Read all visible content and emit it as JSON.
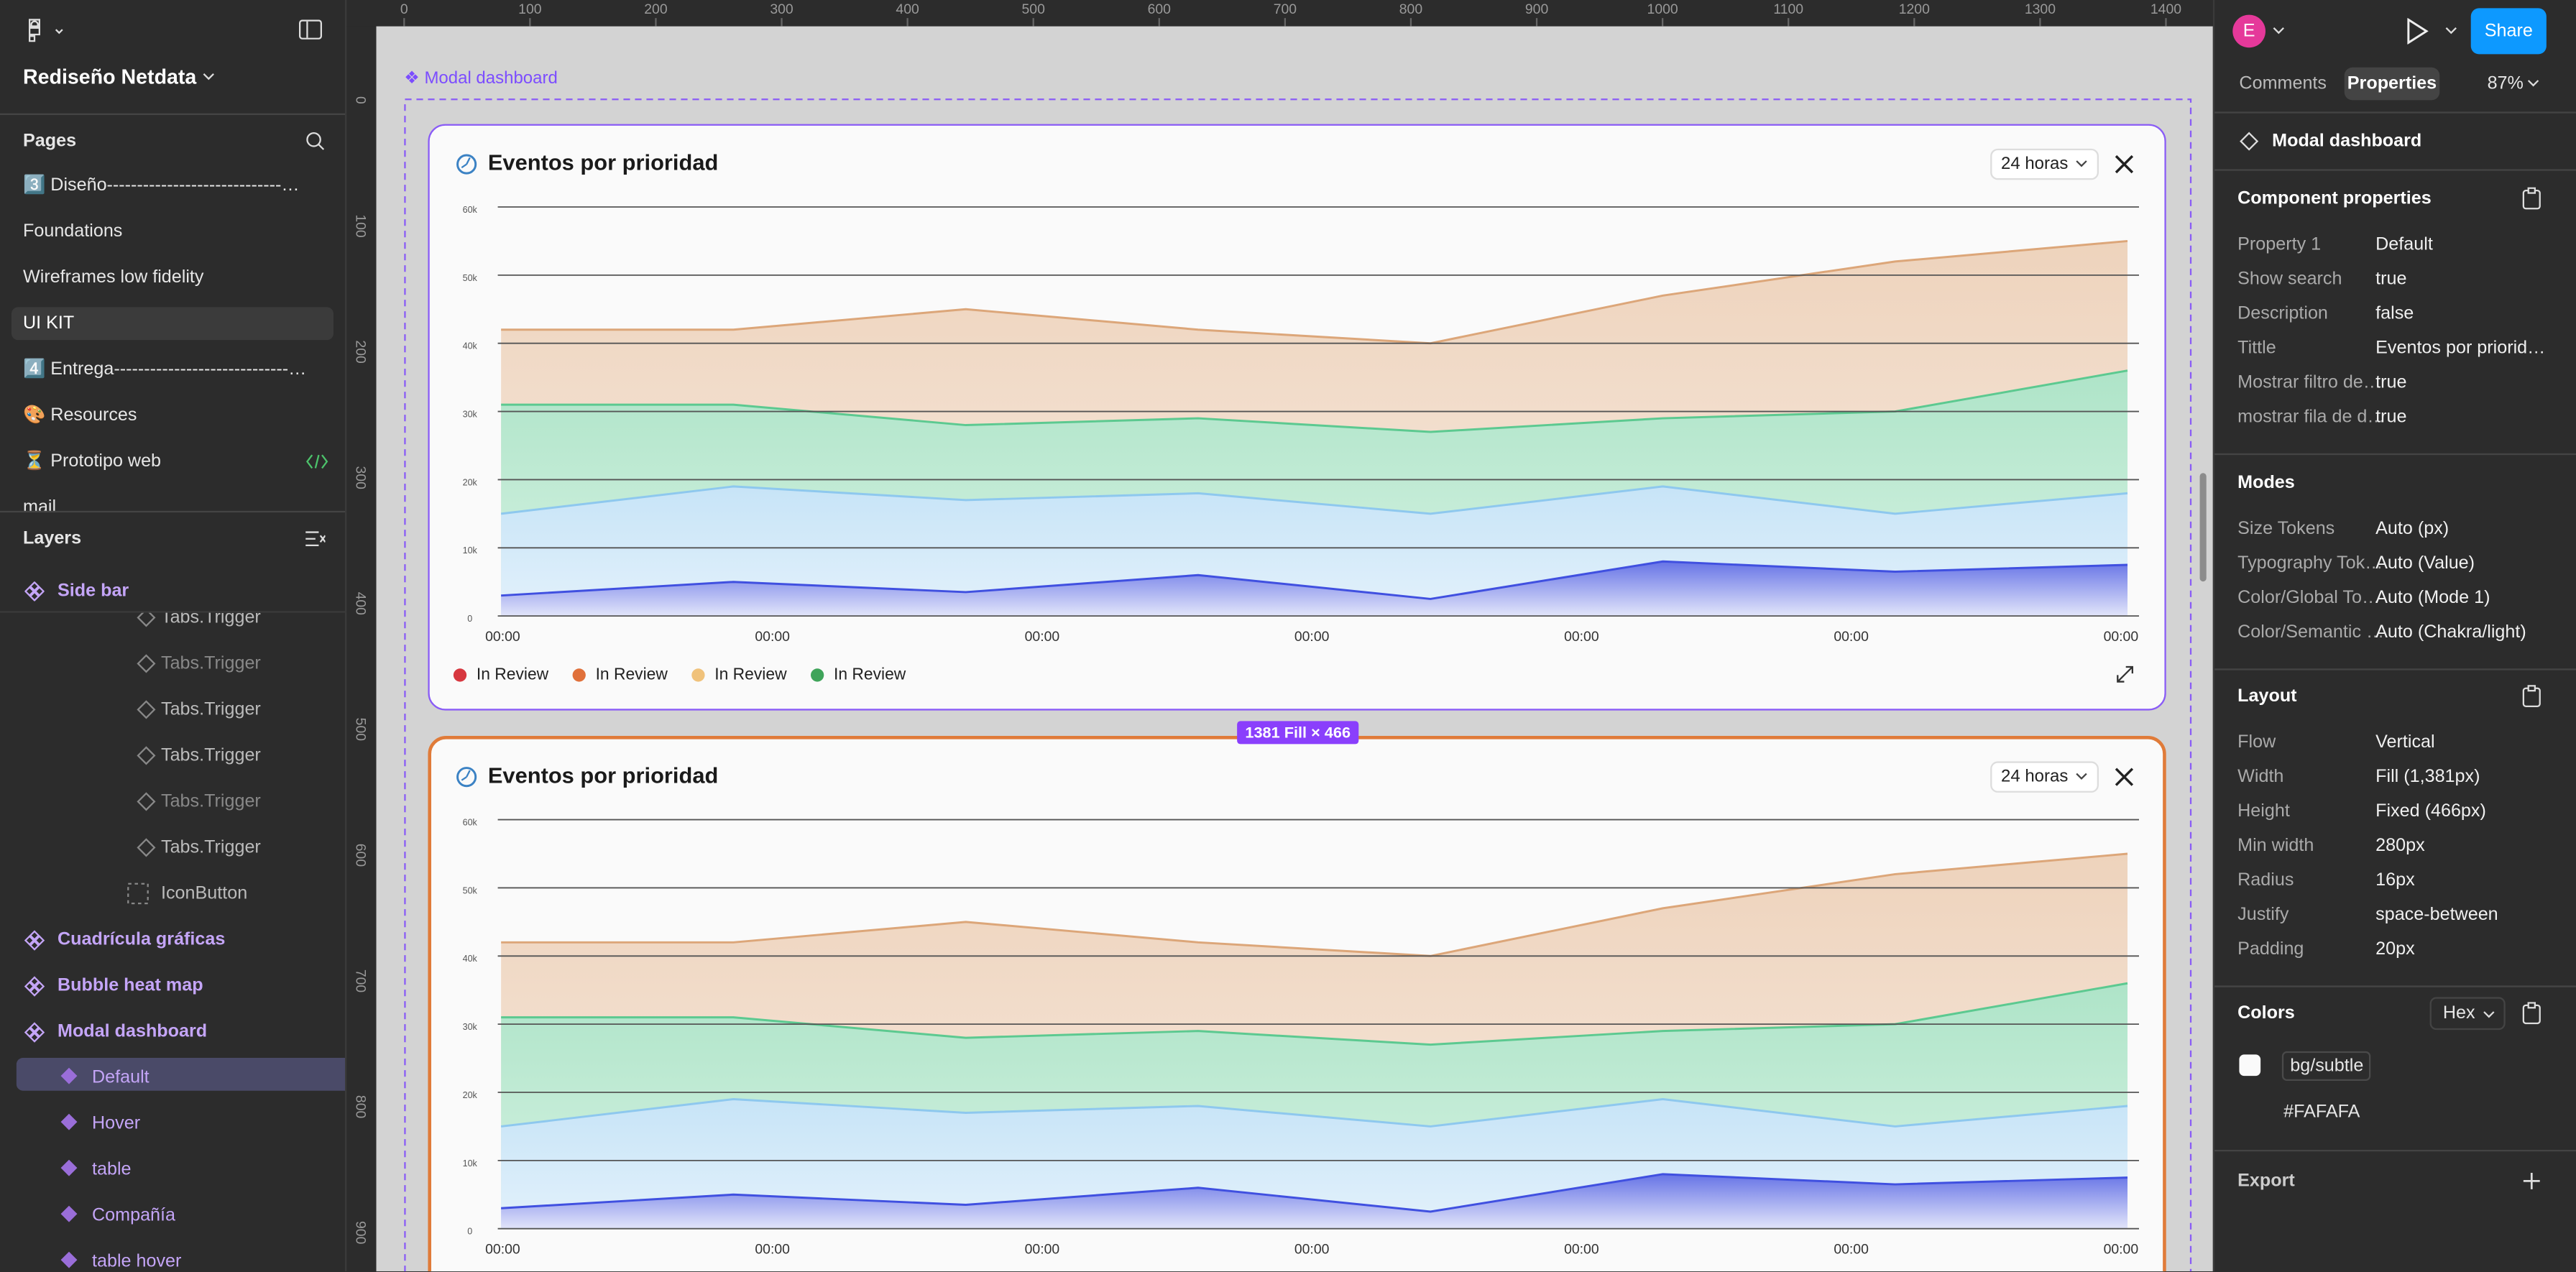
{
  "toolbar": {
    "file_name": "Rediseño Netdata"
  },
  "pages": {
    "title": "Pages",
    "items": [
      "3️⃣ Diseño-----------------------------…",
      "Foundations",
      "Wireframes low fidelity",
      "UI KIT",
      "4️⃣ Entrega-----------------------------…",
      "🎨 Resources",
      "⏳ Prototipo web",
      "mail"
    ]
  },
  "layers": {
    "title": "Layers",
    "items": [
      "Side bar",
      "Tabs.Trigger",
      "Tabs.Trigger",
      "Tabs.Trigger",
      "Tabs.Trigger",
      "Tabs.Trigger",
      "Tabs.Trigger",
      "IconButton",
      "Cuadrícula gráficas",
      "Bubble heat map",
      "Modal dashboard",
      "Default",
      "Hover",
      "table",
      "Compañía",
      "table hover"
    ]
  },
  "rulers": {
    "top": [
      0,
      100,
      200,
      300,
      400,
      500,
      600,
      700,
      800,
      900,
      1000,
      1100,
      1200,
      1300,
      1400
    ],
    "left": [
      0,
      100,
      200,
      300,
      400,
      500,
      600,
      700,
      800,
      900
    ]
  },
  "canvas": {
    "frame_label": "❖ Modal dashboard",
    "size_badge": "1381 Fill × 466",
    "cards": [
      {
        "title": "Eventos por prioridad",
        "range": "24 horas",
        "chart": {
          "type": "area",
          "ylim": [
            0,
            60000
          ],
          "yticks": [
            0,
            {
              "value": 10000,
              "label": "10k"
            },
            {
              "value": 20000,
              "label": "20k"
            },
            {
              "value": 30000,
              "label": "30k"
            },
            {
              "value": 40000,
              "label": "40k"
            },
            {
              "value": 50000,
              "label": "50k"
            },
            {
              "value": 60000,
              "label": "60k"
            }
          ],
          "x_labels": [
            "00:00",
            "00:00",
            "00:00",
            "00:00",
            "00:00",
            "00:00",
            "00:00"
          ],
          "series": [
            {
              "color": "#dca679",
              "values": [
                42000,
                42000,
                45000,
                42000,
                40000,
                47000,
                52000,
                55000
              ]
            },
            {
              "color": "#5cc990",
              "values": [
                31000,
                31000,
                28000,
                29000,
                27000,
                29000,
                30000,
                36000
              ]
            },
            {
              "color": "#8ec8ee",
              "values": [
                15000,
                19000,
                17000,
                18000,
                15000,
                19000,
                15000,
                18000
              ]
            },
            {
              "color": "#4050e0",
              "values": [
                3000,
                5000,
                3500,
                6000,
                2500,
                8000,
                6500,
                7500
              ]
            }
          ],
          "legend": [
            {
              "name": "In Review",
              "color": "#d7373f"
            },
            {
              "name": "In Review",
              "color": "#e0703a"
            },
            {
              "name": "In Review",
              "color": "#f0c27b"
            },
            {
              "name": "In Review",
              "color": "#3fa45a"
            }
          ]
        }
      },
      {
        "title": "Eventos por prioridad",
        "range": "24 horas",
        "chart": {
          "type": "area",
          "ylim": [
            0,
            60000
          ],
          "yticks": [
            0,
            {
              "value": 10000,
              "label": "10k"
            },
            {
              "value": 20000,
              "label": "20k"
            },
            {
              "value": 30000,
              "label": "30k"
            },
            {
              "value": 40000,
              "label": "40k"
            },
            {
              "value": 50000,
              "label": "50k"
            },
            {
              "value": 60000,
              "label": "60k"
            }
          ],
          "x_labels": [
            "00:00",
            "00:00",
            "00:00",
            "00:00",
            "00:00",
            "00:00",
            "00:00"
          ],
          "series": [
            {
              "color": "#dca679",
              "values": [
                42000,
                42000,
                45000,
                42000,
                40000,
                47000,
                52000,
                55000
              ]
            },
            {
              "color": "#5cc990",
              "values": [
                31000,
                31000,
                28000,
                29000,
                27000,
                29000,
                30000,
                36000
              ]
            },
            {
              "color": "#8ec8ee",
              "values": [
                15000,
                19000,
                17000,
                18000,
                15000,
                19000,
                15000,
                18000
              ]
            },
            {
              "color": "#4050e0",
              "values": [
                3000,
                5000,
                3500,
                6000,
                2500,
                8000,
                6500,
                7500
              ]
            }
          ]
        }
      }
    ]
  },
  "properties": {
    "avatar": "E",
    "share": "Share",
    "tabs": [
      "Comments",
      "Properties"
    ],
    "zoom": "87%",
    "selection": "Modal dashboard",
    "sections": [
      {
        "title": "Component properties",
        "rows": [
          [
            "Property 1",
            "Default"
          ],
          [
            "Show search",
            "true"
          ],
          [
            "Description",
            "false"
          ],
          [
            "Tittle",
            "Eventos por priorid…"
          ],
          [
            "Mostrar filtro de…",
            "true"
          ],
          [
            "mostrar fila de d…",
            "true"
          ]
        ]
      },
      {
        "title": "Modes",
        "rows": [
          [
            "Size Tokens",
            "Auto (px)"
          ],
          [
            "Typography Tok…",
            "Auto (Value)"
          ],
          [
            "Color/Global To…",
            "Auto (Mode 1)"
          ],
          [
            "Color/Semantic …",
            "Auto (Chakra/light)"
          ]
        ]
      },
      {
        "title": "Layout",
        "rows": [
          [
            "Flow",
            "Vertical"
          ],
          [
            "Width",
            "Fill (1,381px)"
          ],
          [
            "Height",
            "Fixed (466px)"
          ],
          [
            "Min width",
            "280px"
          ],
          [
            "Radius",
            "16px"
          ],
          [
            "Justify",
            "space-between"
          ],
          [
            "Padding",
            "20px"
          ]
        ]
      }
    ],
    "colors": {
      "title": "Colors",
      "format": "Hex",
      "token": "bg/subtle",
      "hex": "#FAFAFA"
    },
    "export": "Export"
  }
}
